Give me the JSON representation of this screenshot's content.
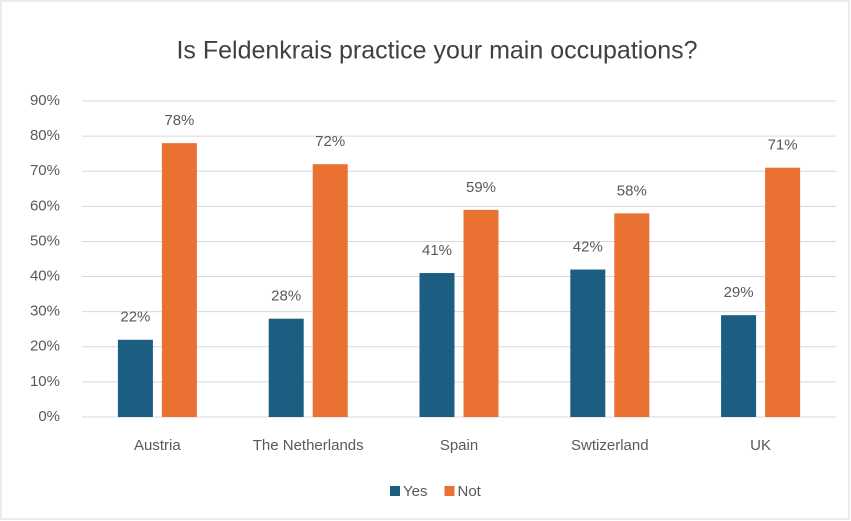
{
  "chart_data": {
    "type": "bar",
    "title": "Is Feldenkrais practice your main occupations?",
    "categories": [
      "Austria",
      "The Netherlands",
      "Spain",
      "Swtizerland",
      "UK"
    ],
    "series": [
      {
        "name": "Yes",
        "color": "#1b5e82",
        "values": [
          22,
          28,
          41,
          42,
          29
        ],
        "value_labels": [
          "22%",
          "28%",
          "41%",
          "42%",
          "29%"
        ]
      },
      {
        "name": "Not",
        "color": "#e97132",
        "values": [
          78,
          72,
          59,
          58,
          71
        ],
        "value_labels": [
          "78%",
          "72%",
          "59%",
          "58%",
          "71%"
        ]
      }
    ],
    "ylim": [
      0,
      90
    ],
    "yticks": [
      {
        "value": 0,
        "label": "0%"
      },
      {
        "value": 10,
        "label": "10%"
      },
      {
        "value": 20,
        "label": "20%"
      },
      {
        "value": 30,
        "label": "30%"
      },
      {
        "value": 40,
        "label": "40%"
      },
      {
        "value": 50,
        "label": "50%"
      },
      {
        "value": 60,
        "label": "60%"
      },
      {
        "value": 70,
        "label": "70%"
      },
      {
        "value": 80,
        "label": "80%"
      },
      {
        "value": 90,
        "label": "90%"
      }
    ],
    "grid": true,
    "legend": "bottom"
  }
}
